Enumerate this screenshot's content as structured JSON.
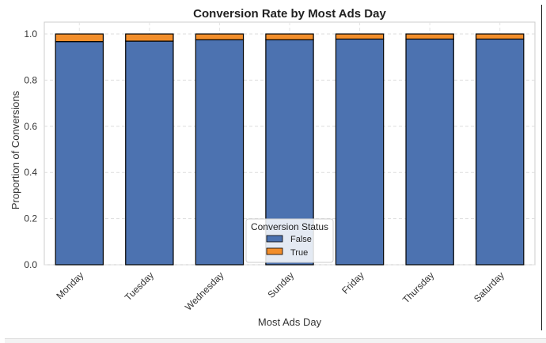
{
  "chart_data": {
    "type": "bar",
    "stacked": true,
    "title": "Conversion Rate by Most Ads Day",
    "xlabel": "Most Ads Day",
    "ylabel": "Proportion of Conversions",
    "ylim": [
      0,
      1.0
    ],
    "yticks": [
      "0.0",
      "0.2",
      "0.4",
      "0.6",
      "0.8",
      "1.0"
    ],
    "grid": true,
    "categories": [
      "Monday",
      "Tuesday",
      "Wednesday",
      "Sunday",
      "Friday",
      "Thursday",
      "Saturday"
    ],
    "series": [
      {
        "name": "False",
        "color": "#4c72b0",
        "values": [
          0.967,
          0.969,
          0.975,
          0.975,
          0.978,
          0.978,
          0.978
        ]
      },
      {
        "name": "True",
        "color": "#f28e2b",
        "values": [
          0.033,
          0.031,
          0.025,
          0.025,
          0.022,
          0.022,
          0.022
        ]
      }
    ],
    "legend": {
      "title": "Conversion Status",
      "placement": "bottom-center"
    }
  }
}
